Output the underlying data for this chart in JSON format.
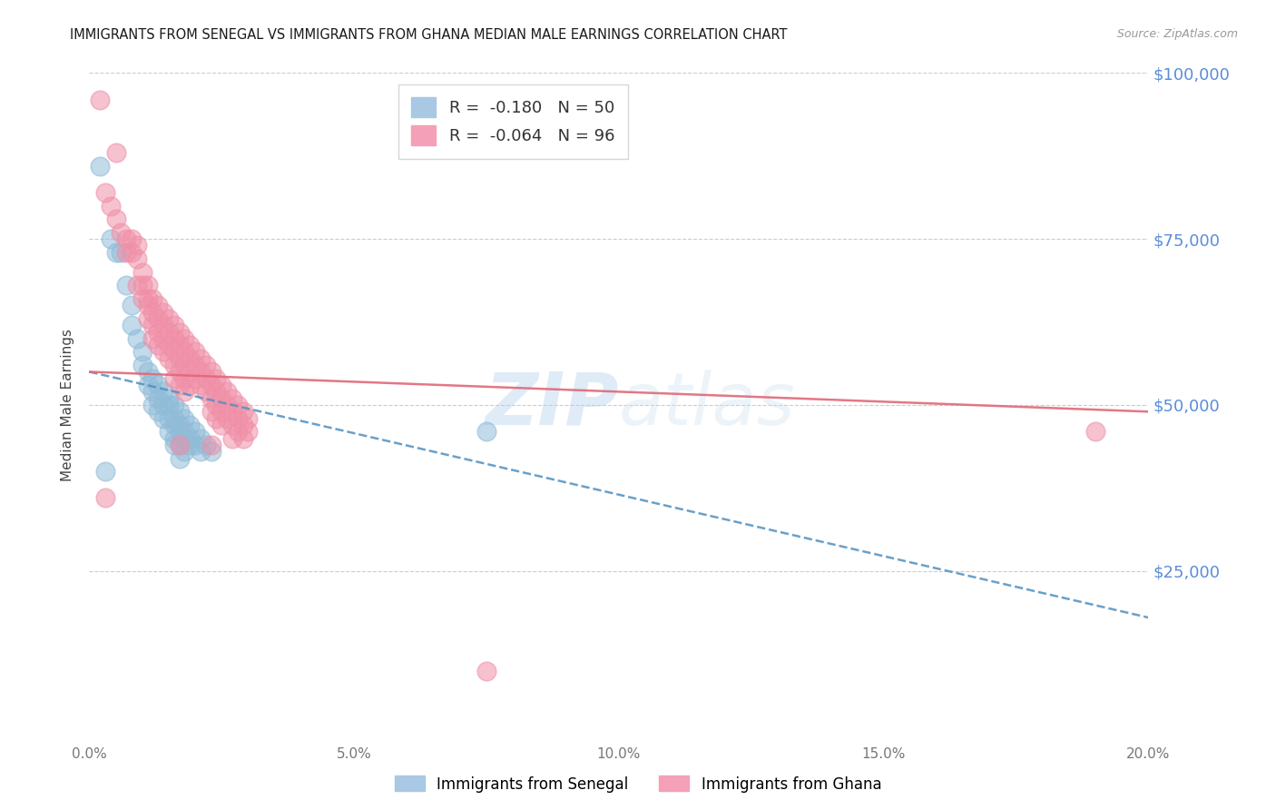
{
  "title": "IMMIGRANTS FROM SENEGAL VS IMMIGRANTS FROM GHANA MEDIAN MALE EARNINGS CORRELATION CHART",
  "source": "Source: ZipAtlas.com",
  "ylabel": "Median Male Earnings",
  "x_min": 0.0,
  "x_max": 0.2,
  "y_min": 0,
  "y_max": 100000,
  "y_ticks": [
    25000,
    50000,
    75000,
    100000
  ],
  "y_tick_labels": [
    "$25,000",
    "$50,000",
    "$75,000",
    "$100,000"
  ],
  "x_tick_labels": [
    "0.0%",
    "5.0%",
    "10.0%",
    "15.0%",
    "20.0%"
  ],
  "x_ticks": [
    0.0,
    0.05,
    0.1,
    0.15,
    0.2
  ],
  "senegal_color": "#90bcd8",
  "ghana_color": "#f090a8",
  "senegal_line_color": "#5090c0",
  "ghana_line_color": "#e06878",
  "background_color": "#ffffff",
  "grid_color": "#cccccc",
  "right_label_color": "#5b8dd9",
  "watermark_color": "#d8e8f4",
  "senegal_points": [
    [
      0.002,
      86000
    ],
    [
      0.004,
      75000
    ],
    [
      0.005,
      73000
    ],
    [
      0.006,
      73000
    ],
    [
      0.007,
      68000
    ],
    [
      0.008,
      65000
    ],
    [
      0.008,
      62000
    ],
    [
      0.009,
      60000
    ],
    [
      0.01,
      58000
    ],
    [
      0.01,
      56000
    ],
    [
      0.011,
      55000
    ],
    [
      0.011,
      53000
    ],
    [
      0.012,
      54000
    ],
    [
      0.012,
      52000
    ],
    [
      0.012,
      50000
    ],
    [
      0.013,
      53000
    ],
    [
      0.013,
      51000
    ],
    [
      0.013,
      49000
    ],
    [
      0.014,
      52000
    ],
    [
      0.014,
      50000
    ],
    [
      0.014,
      48000
    ],
    [
      0.015,
      51000
    ],
    [
      0.015,
      50000
    ],
    [
      0.015,
      48000
    ],
    [
      0.015,
      46000
    ],
    [
      0.016,
      50000
    ],
    [
      0.016,
      48000
    ],
    [
      0.016,
      47000
    ],
    [
      0.016,
      45000
    ],
    [
      0.016,
      44000
    ],
    [
      0.017,
      49000
    ],
    [
      0.017,
      47000
    ],
    [
      0.017,
      46000
    ],
    [
      0.017,
      44000
    ],
    [
      0.017,
      42000
    ],
    [
      0.018,
      48000
    ],
    [
      0.018,
      46000
    ],
    [
      0.018,
      45000
    ],
    [
      0.018,
      43000
    ],
    [
      0.019,
      47000
    ],
    [
      0.019,
      45000
    ],
    [
      0.019,
      44000
    ],
    [
      0.02,
      46000
    ],
    [
      0.02,
      44000
    ],
    [
      0.021,
      45000
    ],
    [
      0.021,
      43000
    ],
    [
      0.022,
      44000
    ],
    [
      0.023,
      43000
    ],
    [
      0.075,
      46000
    ],
    [
      0.003,
      40000
    ]
  ],
  "ghana_points": [
    [
      0.002,
      96000
    ],
    [
      0.003,
      82000
    ],
    [
      0.004,
      80000
    ],
    [
      0.005,
      88000
    ],
    [
      0.005,
      78000
    ],
    [
      0.006,
      76000
    ],
    [
      0.007,
      75000
    ],
    [
      0.007,
      73000
    ],
    [
      0.008,
      75000
    ],
    [
      0.008,
      73000
    ],
    [
      0.009,
      74000
    ],
    [
      0.009,
      72000
    ],
    [
      0.009,
      68000
    ],
    [
      0.01,
      70000
    ],
    [
      0.01,
      68000
    ],
    [
      0.01,
      66000
    ],
    [
      0.011,
      68000
    ],
    [
      0.011,
      66000
    ],
    [
      0.011,
      65000
    ],
    [
      0.011,
      63000
    ],
    [
      0.012,
      66000
    ],
    [
      0.012,
      64000
    ],
    [
      0.012,
      62000
    ],
    [
      0.012,
      60000
    ],
    [
      0.013,
      65000
    ],
    [
      0.013,
      63000
    ],
    [
      0.013,
      61000
    ],
    [
      0.013,
      59000
    ],
    [
      0.014,
      64000
    ],
    [
      0.014,
      62000
    ],
    [
      0.014,
      60000
    ],
    [
      0.014,
      58000
    ],
    [
      0.015,
      63000
    ],
    [
      0.015,
      61000
    ],
    [
      0.015,
      59000
    ],
    [
      0.015,
      57000
    ],
    [
      0.016,
      62000
    ],
    [
      0.016,
      60000
    ],
    [
      0.016,
      58000
    ],
    [
      0.016,
      56000
    ],
    [
      0.016,
      54000
    ],
    [
      0.017,
      61000
    ],
    [
      0.017,
      59000
    ],
    [
      0.017,
      57000
    ],
    [
      0.017,
      55000
    ],
    [
      0.017,
      53000
    ],
    [
      0.017,
      44000
    ],
    [
      0.018,
      60000
    ],
    [
      0.018,
      58000
    ],
    [
      0.018,
      56000
    ],
    [
      0.018,
      54000
    ],
    [
      0.018,
      52000
    ],
    [
      0.019,
      59000
    ],
    [
      0.019,
      57000
    ],
    [
      0.019,
      55000
    ],
    [
      0.019,
      53000
    ],
    [
      0.02,
      58000
    ],
    [
      0.02,
      56000
    ],
    [
      0.02,
      54000
    ],
    [
      0.021,
      57000
    ],
    [
      0.021,
      55000
    ],
    [
      0.021,
      53000
    ],
    [
      0.022,
      56000
    ],
    [
      0.022,
      54000
    ],
    [
      0.022,
      52000
    ],
    [
      0.023,
      55000
    ],
    [
      0.023,
      53000
    ],
    [
      0.023,
      51000
    ],
    [
      0.023,
      49000
    ],
    [
      0.023,
      44000
    ],
    [
      0.024,
      54000
    ],
    [
      0.024,
      52000
    ],
    [
      0.024,
      50000
    ],
    [
      0.024,
      48000
    ],
    [
      0.025,
      53000
    ],
    [
      0.025,
      51000
    ],
    [
      0.025,
      49000
    ],
    [
      0.025,
      47000
    ],
    [
      0.026,
      52000
    ],
    [
      0.026,
      50000
    ],
    [
      0.026,
      48000
    ],
    [
      0.027,
      51000
    ],
    [
      0.027,
      49000
    ],
    [
      0.027,
      47000
    ],
    [
      0.027,
      45000
    ],
    [
      0.028,
      50000
    ],
    [
      0.028,
      48000
    ],
    [
      0.028,
      46000
    ],
    [
      0.029,
      49000
    ],
    [
      0.029,
      47000
    ],
    [
      0.029,
      45000
    ],
    [
      0.03,
      48000
    ],
    [
      0.03,
      46000
    ],
    [
      0.19,
      46000
    ],
    [
      0.075,
      10000
    ],
    [
      0.003,
      36000
    ]
  ],
  "senegal_line_x0": 0.0,
  "senegal_line_y0": 55000,
  "senegal_line_x1": 0.2,
  "senegal_line_y1": 18000,
  "ghana_line_x0": 0.0,
  "ghana_line_y0": 55000,
  "ghana_line_x1": 0.2,
  "ghana_line_y1": 49000
}
